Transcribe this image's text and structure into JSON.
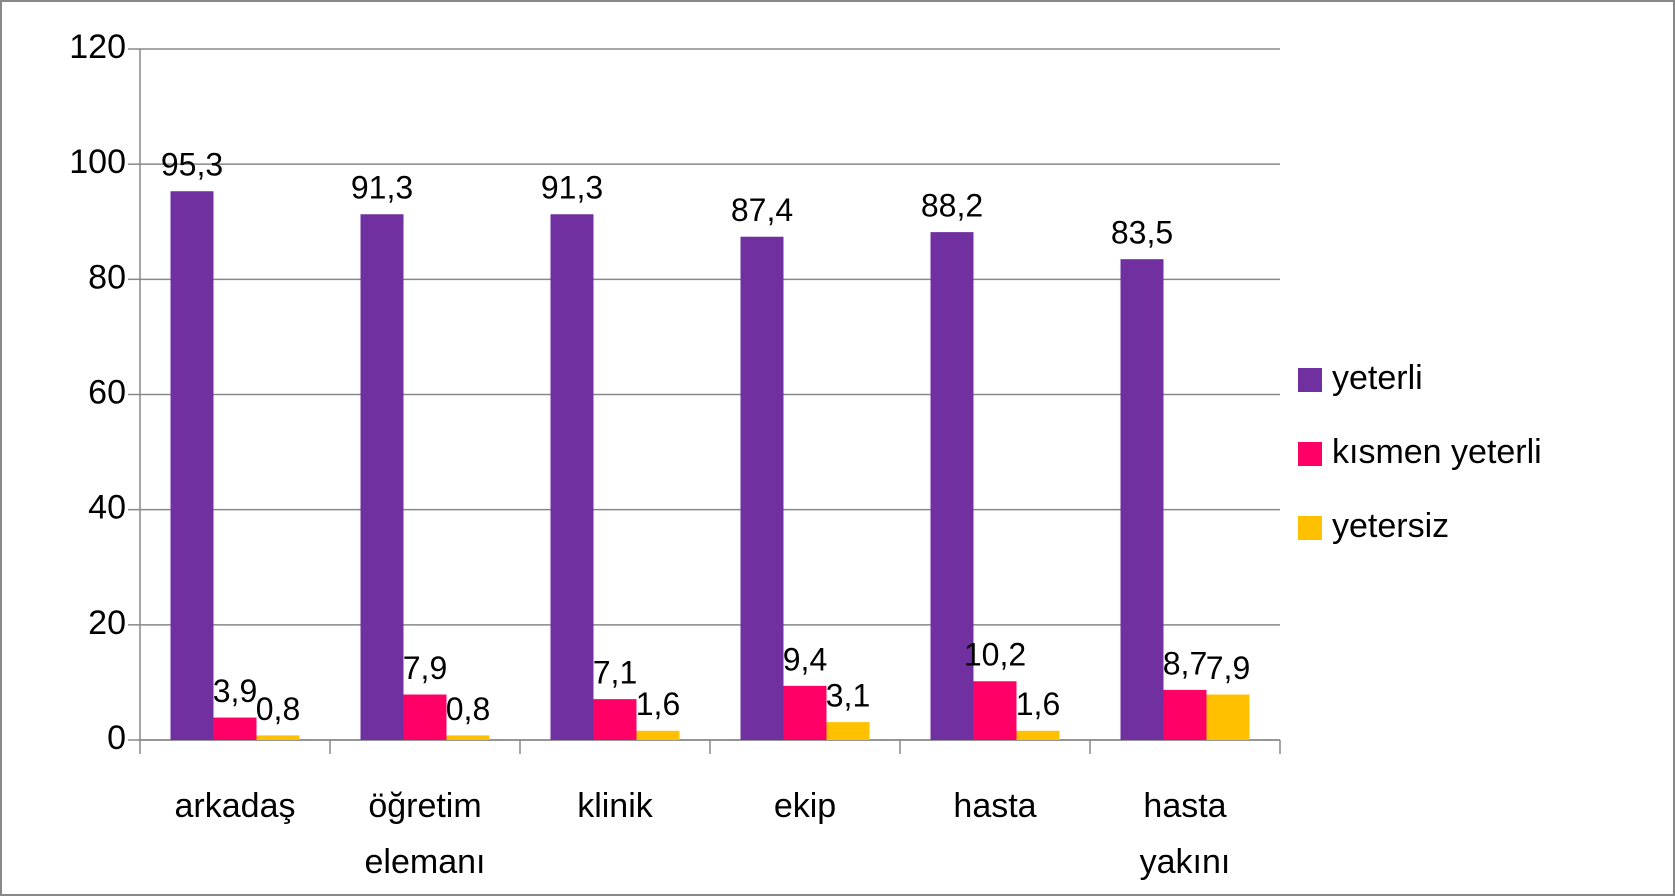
{
  "chart_data": {
    "type": "bar",
    "categories": [
      [
        "arkadaş"
      ],
      [
        "öğretim",
        "elemanı"
      ],
      [
        "klinik"
      ],
      [
        "ekip"
      ],
      [
        "hasta"
      ],
      [
        "hasta",
        "yakını"
      ]
    ],
    "series": [
      {
        "name": "yeterli",
        "color": "#7030a0",
        "values": [
          95.3,
          91.3,
          91.3,
          87.4,
          88.2,
          83.5
        ],
        "value_labels": [
          "95,3",
          "91,3",
          "91,3",
          "87,4",
          "88,2",
          "83,5"
        ]
      },
      {
        "name": "kısmen yeterli",
        "color": "#ff0066",
        "values": [
          3.9,
          7.9,
          7.1,
          9.4,
          10.2,
          8.7
        ],
        "value_labels": [
          "3,9",
          "7,9",
          "7,1",
          "9,4",
          "10,2",
          "8,7"
        ]
      },
      {
        "name": "yetersiz",
        "color": "#ffc000",
        "values": [
          0.8,
          0.8,
          1.6,
          3.1,
          1.6,
          7.9
        ],
        "value_labels": [
          "0,8",
          "0,8",
          "1,6",
          "3,1",
          "1,6",
          "7,9"
        ]
      }
    ],
    "ylim": [
      0,
      120
    ],
    "yticks": [
      0,
      20,
      40,
      60,
      80,
      100,
      120
    ],
    "grid": true,
    "legend": "right"
  }
}
